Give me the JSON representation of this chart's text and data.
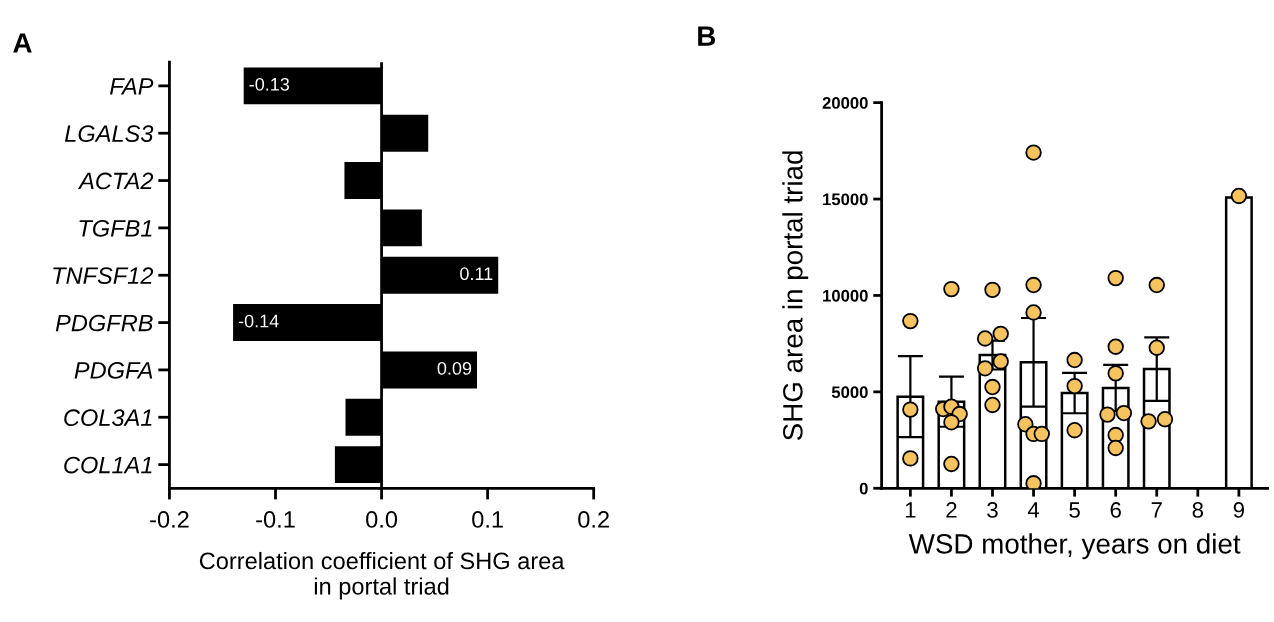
{
  "chart_data": [
    {
      "type": "bar",
      "title": "A",
      "orientation": "horizontal",
      "xlabel": "Correlation coefficient of SHG area\nin portal triad",
      "categories": [
        "FAP",
        "LGALS3",
        "ACTA2",
        "TGFB1",
        "TNFSF12",
        "PDGFRB",
        "PDGFA",
        "COL3A1",
        "COL1A1"
      ],
      "series": [
        {
          "color": "#000000",
          "values": [
            -0.13,
            0.044,
            -0.035,
            0.038,
            0.11,
            -0.14,
            0.09,
            -0.034,
            -0.044
          ],
          "value_labels": [
            "-0.13",
            null,
            null,
            null,
            "0.11",
            "-0.14",
            "0.09",
            null,
            null
          ]
        }
      ],
      "xlim": [
        -0.2,
        0.2
      ],
      "xticks": [
        {
          "value": -0.2,
          "label": "-0.2"
        },
        {
          "value": -0.1,
          "label": "-0.1"
        },
        {
          "value": 0,
          "label": "0.0"
        },
        {
          "value": 0.1,
          "label": "0.1"
        },
        {
          "value": 0.2,
          "label": "0.2"
        }
      ],
      "ref_lines": [
        {
          "axis": "x",
          "value": 0,
          "color": "#000000"
        }
      ],
      "grid": false,
      "legend": false
    },
    {
      "type": "bar",
      "title": "B",
      "xlabel": "WSD mother, years on diet",
      "ylabel": "SHG area in portal triad",
      "series": [
        {
          "type": "bar",
          "color": "#ffffff",
          "x": [
            1,
            2,
            3,
            4,
            5,
            6,
            7,
            8,
            9
          ],
          "values": [
            4750,
            4490,
            6910,
            6530,
            4940,
            5200,
            6180,
            null,
            15080
          ],
          "errors": [
            2100,
            1300,
            750,
            2300,
            1050,
            1200,
            1650,
            null,
            null
          ]
        },
        {
          "type": "scatter",
          "color": "#f7c35f",
          "x": [
            1,
            1,
            1,
            1.8,
            2,
            2.2,
            2,
            2,
            2,
            3,
            2.82,
            3.2,
            2.82,
            3.2,
            3,
            3,
            4,
            4,
            4,
            3.8,
            4,
            4.2,
            4,
            5,
            5,
            5,
            6,
            6,
            6,
            5.8,
            6.2,
            6,
            6,
            7,
            7,
            6.8,
            7.2,
            9
          ],
          "values": [
            8670,
            4080,
            1550,
            4110,
            4230,
            3850,
            3420,
            10330,
            1260,
            10290,
            7770,
            8010,
            6220,
            6580,
            5250,
            4320,
            17410,
            10540,
            9120,
            3320,
            2820,
            2820,
            260,
            6650,
            5300,
            3010,
            10900,
            7340,
            5960,
            3820,
            3900,
            2760,
            2090,
            10540,
            7290,
            3470,
            3580,
            15160
          ]
        }
      ],
      "xlim": [
        0.3,
        9.7
      ],
      "xticks": [
        1,
        2,
        3,
        4,
        5,
        6,
        7,
        8,
        9
      ],
      "ylim": [
        0,
        20000
      ],
      "yticks": [
        0,
        5000,
        10000,
        15000,
        20000
      ],
      "marker": "circle",
      "grid": false,
      "legend": false
    }
  ]
}
